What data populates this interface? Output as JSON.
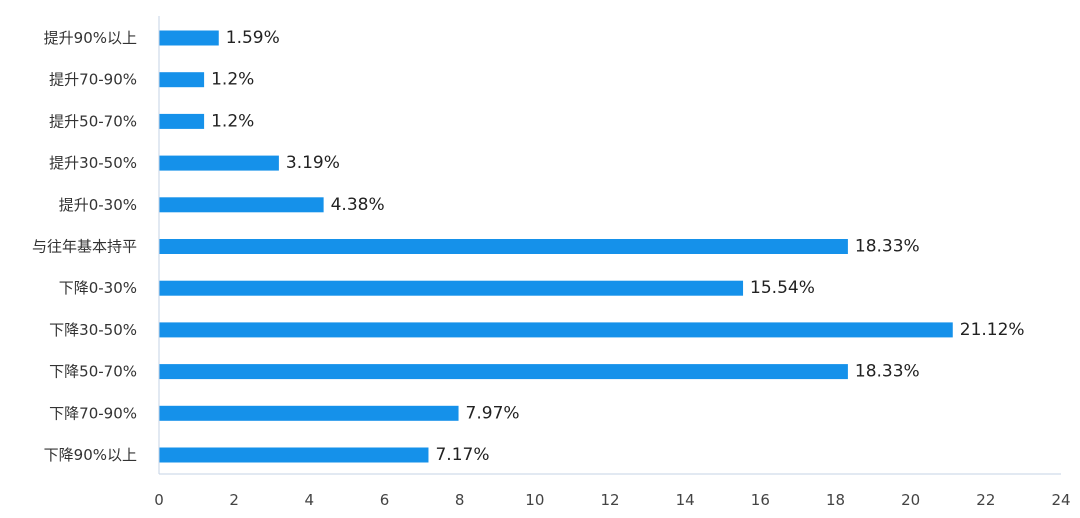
{
  "chart_data": {
    "type": "bar",
    "orientation": "horizontal",
    "categories": [
      "提升90%以上",
      "提升70-90%",
      "提升50-70%",
      "提升30-50%",
      "提升0-30%",
      "与往年基本持平",
      "下降0-30%",
      "下降30-50%",
      "下降50-70%",
      "下降70-90%",
      "下降90%以上"
    ],
    "values": [
      1.59,
      1.2,
      1.2,
      3.19,
      4.38,
      18.33,
      15.54,
      21.12,
      18.33,
      7.97,
      7.17
    ],
    "value_labels": [
      "1.59%",
      "1.2%",
      "1.2%",
      "3.19%",
      "4.38%",
      "18.33%",
      "15.54%",
      "21.12%",
      "18.33%",
      "7.97%",
      "7.17%"
    ],
    "xlim": [
      0,
      24
    ],
    "xticks": [
      "0",
      "2",
      "4",
      "6",
      "8",
      "10",
      "12",
      "14",
      "16",
      "18",
      "20",
      "22",
      "24"
    ],
    "bar_color": "#1591ea",
    "axis_color": "#c5d3e6",
    "grid": false,
    "legend": "none"
  }
}
